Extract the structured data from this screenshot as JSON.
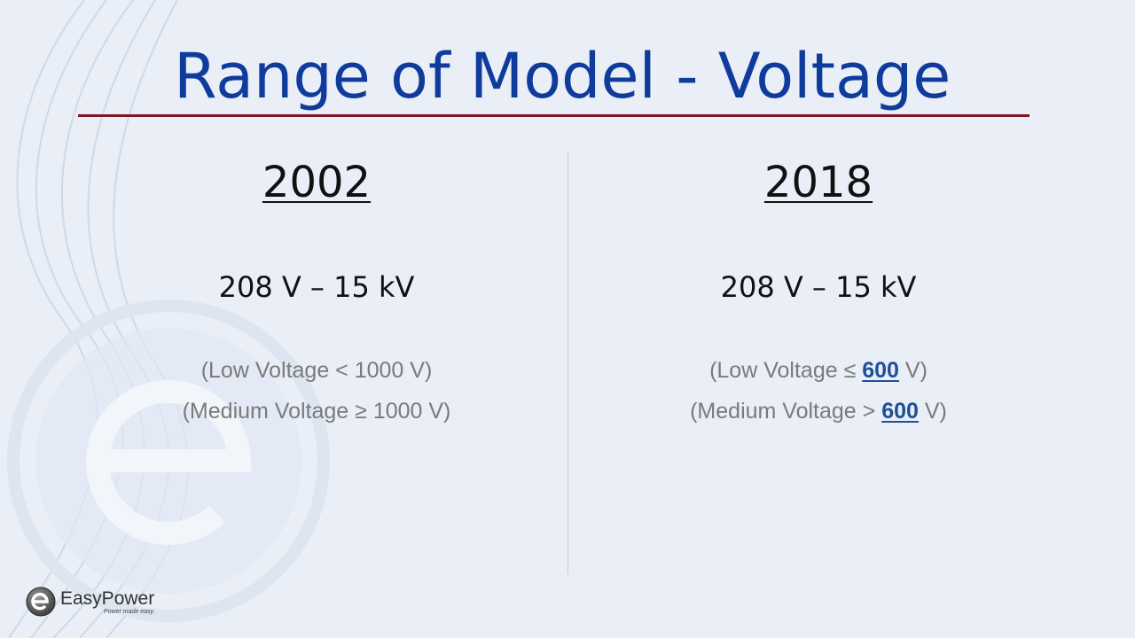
{
  "slide": {
    "title": "Range of Model - Voltage",
    "accent_color": "#0f3c9c",
    "rule_color": "#7d1a26",
    "highlight_color": "#1f4f96"
  },
  "columns": [
    {
      "year": "2002",
      "range": "208 V – 15 kV",
      "notes": [
        {
          "before": "(Low Voltage < 1000 V)",
          "highlight": "",
          "after": ""
        },
        {
          "before": "(Medium Voltage ≥ 1000 V)",
          "highlight": "",
          "after": ""
        }
      ]
    },
    {
      "year": "2018",
      "range": "208 V – 15 kV",
      "notes": [
        {
          "before": "(Low Voltage ≤ ",
          "highlight": "600",
          "after": " V)"
        },
        {
          "before": "(Medium Voltage > ",
          "highlight": "600",
          "after": " V)"
        }
      ]
    }
  ],
  "logo": {
    "name": "EasyPower",
    "tagline": "Power made easy.",
    "icon": "easypower-e-logo-icon"
  }
}
